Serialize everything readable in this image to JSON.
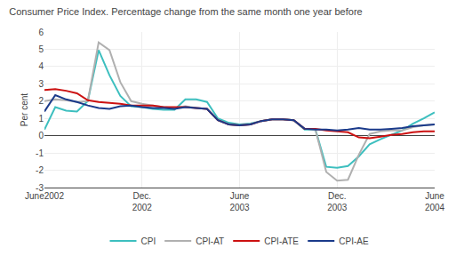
{
  "chart_data": {
    "type": "line",
    "title": "Consumer Price Index. Percentage change from the same month one year before",
    "y_label": "Per cent",
    "categories": [
      "June2002",
      null,
      null,
      null,
      null,
      null,
      null,
      null,
      null,
      "Dec.\n2002",
      null,
      null,
      null,
      null,
      null,
      null,
      null,
      null,
      "June\n2003",
      null,
      null,
      null,
      null,
      null,
      null,
      null,
      null,
      "Dec.\n2003",
      null,
      null,
      null,
      null,
      null,
      null,
      null,
      null,
      "June\n2004"
    ],
    "ylim": [
      -3,
      6
    ],
    "yticks": [
      -3,
      -2,
      -1,
      0,
      1,
      2,
      3,
      4,
      5,
      6
    ],
    "grid": true,
    "legend": "bottom",
    "series": [
      {
        "name": "CPI",
        "color": "#3dbfbf",
        "values": [
          0.35,
          1.65,
          1.45,
          1.4,
          2.0,
          4.95,
          3.5,
          2.3,
          1.7,
          1.65,
          1.55,
          1.5,
          1.5,
          2.1,
          2.1,
          1.95,
          1.0,
          0.75,
          0.65,
          0.7,
          0.85,
          0.95,
          0.95,
          0.9,
          0.35,
          0.35,
          -1.8,
          -1.85,
          -1.75,
          -1.2,
          -0.5,
          -0.2,
          0.05,
          0.3,
          0.7,
          1.0,
          1.35
        ]
      },
      {
        "name": "CPI-AT",
        "color": "#b0b0b0",
        "values": [
          2.0,
          2.1,
          2.05,
          1.95,
          2.0,
          5.4,
          4.95,
          3.1,
          2.0,
          1.85,
          1.75,
          1.65,
          1.6,
          1.7,
          1.6,
          1.55,
          0.9,
          0.65,
          0.6,
          0.65,
          0.85,
          0.95,
          0.95,
          0.9,
          0.4,
          0.35,
          -2.1,
          -2.6,
          -2.55,
          -1.1,
          0.1,
          0.25,
          0.3,
          0.3,
          0.5,
          0.6,
          0.65
        ]
      },
      {
        "name": "CPI-ATE",
        "color": "#cc1111",
        "values": [
          2.65,
          2.7,
          2.6,
          2.45,
          2.05,
          1.95,
          1.9,
          1.85,
          1.75,
          1.75,
          1.75,
          1.65,
          1.65,
          1.65,
          1.6,
          1.55,
          0.9,
          0.65,
          0.6,
          0.65,
          0.85,
          0.95,
          0.95,
          0.9,
          0.4,
          0.4,
          0.3,
          0.25,
          0.2,
          -0.1,
          -0.15,
          -0.05,
          0.05,
          0.1,
          0.2,
          0.25,
          0.25
        ]
      },
      {
        "name": "CPI-AE",
        "color": "#1a3a8a",
        "values": [
          1.4,
          2.35,
          2.1,
          1.95,
          1.75,
          1.6,
          1.55,
          1.7,
          1.75,
          1.65,
          1.6,
          1.6,
          1.55,
          1.65,
          1.6,
          1.55,
          0.9,
          0.65,
          0.6,
          0.65,
          0.85,
          0.95,
          0.95,
          0.9,
          0.4,
          0.35,
          0.35,
          0.3,
          0.35,
          0.45,
          0.35,
          0.35,
          0.4,
          0.45,
          0.55,
          0.6,
          0.65
        ]
      }
    ]
  }
}
